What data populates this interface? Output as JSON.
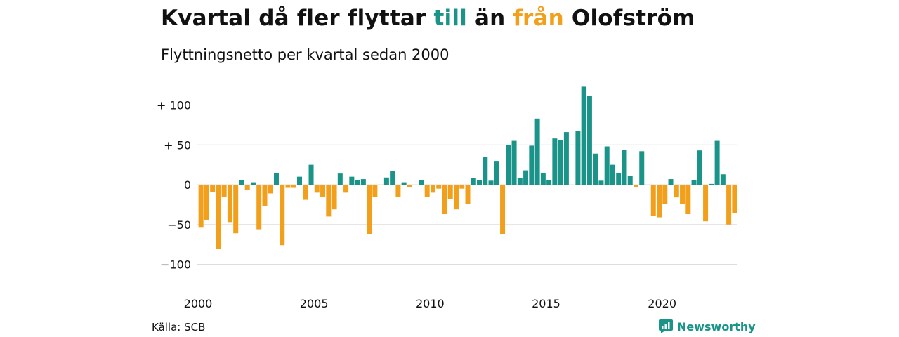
{
  "title": {
    "part1": "Kvartal då fler flyttar ",
    "part2": "till",
    "part3": " än ",
    "part4": "från",
    "part5": " Olofström"
  },
  "subtitle": "Flyttningsnetto per kvartal sedan 2000",
  "source": "Källa: SCB",
  "brand": "Newsworthy",
  "colors": {
    "positive": "#1a9489",
    "negative": "#f29f1c",
    "grid": "#dddddd",
    "text": "#111111"
  },
  "chart_data": {
    "type": "bar",
    "xlabel": "",
    "ylabel": "",
    "ylim": [
      -120,
      130
    ],
    "grid": true,
    "y_ticks": [
      {
        "value": 100,
        "label": "+ 100"
      },
      {
        "value": 50,
        "label": "+  50"
      },
      {
        "value": 0,
        "label": "0"
      },
      {
        "value": -50,
        "label": "−50"
      },
      {
        "value": -100,
        "label": "−100"
      }
    ],
    "x_ticks": [
      "2000",
      "2005",
      "2010",
      "2015",
      "2020"
    ],
    "x_tick_years": [
      2000,
      2005,
      2010,
      2015,
      2020
    ],
    "start_year": 2000,
    "values": [
      -54,
      -44,
      -9,
      -81,
      -15,
      -47,
      -61,
      6,
      -7,
      3,
      -56,
      -27,
      -11,
      15,
      -76,
      -4,
      -4,
      10,
      -19,
      25,
      -10,
      -15,
      -40,
      -31,
      14,
      -10,
      10,
      6,
      7,
      -62,
      -15,
      0,
      9,
      17,
      -15,
      3,
      -3,
      0,
      6,
      -15,
      -10,
      -5,
      -37,
      -18,
      -31,
      -5,
      -24,
      8,
      6,
      35,
      5,
      29,
      -62,
      50,
      55,
      8,
      18,
      49,
      83,
      15,
      6,
      58,
      56,
      66,
      0,
      67,
      123,
      111,
      39,
      5,
      48,
      25,
      15,
      44,
      11,
      -3,
      42,
      0,
      -39,
      -41,
      -24,
      7,
      -16,
      -24,
      -37,
      6,
      43,
      -46,
      1,
      55,
      13,
      -50,
      -36
    ]
  }
}
